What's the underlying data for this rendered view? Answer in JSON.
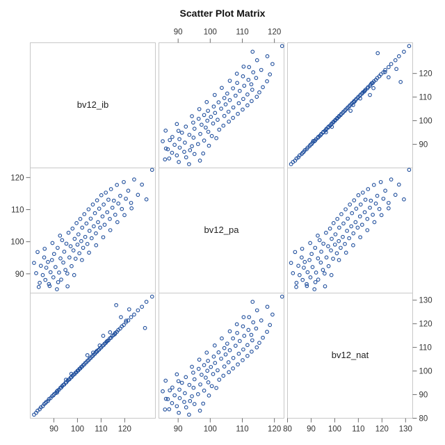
{
  "chart_data": {
    "type": "scatter",
    "title": "Scatter Plot Matrix",
    "variables": [
      "bv12_ib",
      "bv12_pa",
      "bv12_nat"
    ],
    "ranges": {
      "bv12_ib": [
        80,
        133
      ],
      "bv12_pa": [
        84,
        123
      ],
      "bv12_nat": [
        80,
        133
      ]
    },
    "ticks": {
      "bv12_ib": [
        90,
        100,
        110,
        120
      ],
      "bv12_pa": [
        90,
        100,
        110,
        120
      ],
      "bv12_nat": [
        80,
        90,
        100,
        110,
        120,
        130
      ]
    },
    "marker_color": "#1f4e9c",
    "grid": false,
    "series": [
      {
        "x_var": "bv12_ib",
        "y_var": "bv12_pa",
        "points": [
          [
            81.6,
            93.4
          ],
          [
            82.5,
            90.2
          ],
          [
            83.1,
            96.8
          ],
          [
            84.0,
            87.2
          ],
          [
            84.5,
            92.5
          ],
          [
            85.3,
            89.6
          ],
          [
            85.9,
            95.1
          ],
          [
            86.4,
            88.1
          ],
          [
            86.8,
            91.9
          ],
          [
            87.5,
            93.7
          ],
          [
            87.9,
            86.8
          ],
          [
            88.6,
            90.5
          ],
          [
            89.2,
            94.3
          ],
          [
            89.8,
            88.9
          ],
          [
            90.1,
            96.2
          ],
          [
            90.7,
            92.1
          ],
          [
            91.3,
            85.2
          ],
          [
            91.6,
            98.1
          ],
          [
            92.2,
            90.4
          ],
          [
            92.8,
            94.8
          ],
          [
            93.1,
            88.2
          ],
          [
            93.5,
            100.5
          ],
          [
            94.0,
            93.5
          ],
          [
            94.4,
            96.9
          ],
          [
            94.9,
            91.2
          ],
          [
            95.3,
            99.4
          ],
          [
            95.8,
            86.1
          ],
          [
            96.2,
            102.8
          ],
          [
            96.6,
            95.1
          ],
          [
            97.1,
            98.6
          ],
          [
            97.5,
            92.4
          ],
          [
            97.9,
            104.1
          ],
          [
            98.3,
            97.3
          ],
          [
            98.8,
            100.9
          ],
          [
            99.2,
            94.7
          ],
          [
            99.6,
            105.8
          ],
          [
            100.0,
            99.1
          ],
          [
            100.4,
            102.3
          ],
          [
            100.8,
            96.4
          ],
          [
            101.2,
            107.1
          ],
          [
            101.6,
            100.2
          ],
          [
            102.0,
            104.4
          ],
          [
            102.4,
            98.1
          ],
          [
            102.9,
            108.6
          ],
          [
            103.3,
            101.5
          ],
          [
            103.8,
            105.7
          ],
          [
            104.2,
            99.3
          ],
          [
            104.7,
            110.1
          ],
          [
            105.1,
            103.4
          ],
          [
            105.6,
            107.2
          ],
          [
            106.0,
            101.1
          ],
          [
            106.5,
            111.6
          ],
          [
            106.9,
            104.8
          ],
          [
            107.4,
            108.9
          ],
          [
            107.8,
            102.6
          ],
          [
            108.3,
            112.9
          ],
          [
            108.7,
            106.1
          ],
          [
            109.2,
            110.3
          ],
          [
            109.6,
            104.4
          ],
          [
            110.1,
            114.5
          ],
          [
            110.6,
            107.9
          ],
          [
            111.1,
            111.6
          ],
          [
            111.5,
            105.3
          ],
          [
            112.0,
            115.3
          ],
          [
            112.6,
            109.2
          ],
          [
            113.1,
            113.1
          ],
          [
            113.7,
            107.1
          ],
          [
            114.2,
            116.4
          ],
          [
            114.8,
            110.6
          ],
          [
            115.4,
            112.8
          ],
          [
            116.0,
            108.4
          ],
          [
            116.7,
            117.7
          ],
          [
            117.3,
            111.9
          ],
          [
            118.1,
            114.3
          ],
          [
            118.8,
            110.2
          ],
          [
            119.6,
            118.6
          ],
          [
            120.5,
            113.4
          ],
          [
            121.5,
            115.9
          ],
          [
            122.7,
            112.1
          ],
          [
            124.0,
            119.4
          ],
          [
            125.6,
            114.6
          ],
          [
            127.3,
            117.8
          ],
          [
            129.2,
            113.2
          ],
          [
            131.6,
            122.4
          ],
          [
            86.1,
            97.8
          ],
          [
            89.4,
            99.6
          ],
          [
            92.6,
            101.9
          ],
          [
            95.7,
            90.1
          ],
          [
            98.6,
            89.6
          ],
          [
            101.9,
            94.3
          ],
          [
            104.9,
            96.6
          ],
          [
            107.9,
            98.9
          ],
          [
            110.9,
            101.4
          ],
          [
            113.9,
            103.6
          ],
          [
            116.9,
            106.1
          ],
          [
            119.9,
            108.3
          ],
          [
            122.9,
            110.4
          ],
          [
            83.6,
            85.9
          ],
          [
            88.2,
            86.2
          ],
          [
            91.8,
            87.4
          ]
        ]
      },
      {
        "x_var": "bv12_ib",
        "y_var": "bv12_nat",
        "points": [
          [
            81.6,
            81.5
          ],
          [
            82.5,
            82.3
          ],
          [
            83.1,
            83.2
          ],
          [
            84.0,
            83.8
          ],
          [
            84.5,
            84.6
          ],
          [
            85.3,
            85.1
          ],
          [
            85.9,
            86.0
          ],
          [
            86.4,
            86.4
          ],
          [
            86.8,
            86.9
          ],
          [
            87.5,
            87.3
          ],
          [
            87.9,
            88.1
          ],
          [
            88.6,
            88.5
          ],
          [
            89.2,
            89.3
          ],
          [
            89.8,
            89.7
          ],
          [
            90.1,
            90.2
          ],
          [
            90.7,
            90.6
          ],
          [
            91.3,
            91.4
          ],
          [
            91.6,
            91.7
          ],
          [
            92.2,
            92.1
          ],
          [
            92.8,
            92.9
          ],
          [
            93.1,
            93.0
          ],
          [
            93.5,
            93.6
          ],
          [
            94.0,
            94.1
          ],
          [
            94.4,
            94.3
          ],
          [
            94.9,
            95.0
          ],
          [
            95.3,
            95.2
          ],
          [
            95.8,
            95.9
          ],
          [
            96.2,
            96.3
          ],
          [
            96.6,
            96.5
          ],
          [
            97.1,
            97.2
          ],
          [
            97.5,
            97.4
          ],
          [
            97.9,
            98.0
          ],
          [
            98.3,
            98.4
          ],
          [
            98.8,
            98.7
          ],
          [
            99.2,
            99.3
          ],
          [
            99.6,
            99.5
          ],
          [
            100.0,
            100.1
          ],
          [
            100.4,
            100.3
          ],
          [
            100.8,
            100.9
          ],
          [
            101.2,
            101.1
          ],
          [
            101.6,
            101.7
          ],
          [
            102.0,
            101.9
          ],
          [
            102.4,
            102.5
          ],
          [
            102.9,
            102.8
          ],
          [
            103.3,
            103.4
          ],
          [
            103.8,
            103.7
          ],
          [
            104.2,
            104.3
          ],
          [
            104.7,
            104.6
          ],
          [
            105.1,
            105.2
          ],
          [
            105.6,
            105.5
          ],
          [
            106.0,
            106.1
          ],
          [
            106.5,
            106.4
          ],
          [
            106.9,
            107.0
          ],
          [
            107.4,
            107.3
          ],
          [
            107.8,
            107.9
          ],
          [
            108.3,
            108.2
          ],
          [
            108.7,
            108.8
          ],
          [
            109.2,
            109.1
          ],
          [
            109.6,
            109.7
          ],
          [
            110.1,
            110.0
          ],
          [
            110.6,
            110.7
          ],
          [
            111.1,
            111.0
          ],
          [
            111.5,
            111.6
          ],
          [
            112.0,
            111.9
          ],
          [
            112.6,
            112.7
          ],
          [
            113.1,
            113.0
          ],
          [
            113.7,
            113.8
          ],
          [
            114.2,
            114.1
          ],
          [
            114.8,
            114.9
          ],
          [
            115.4,
            115.3
          ],
          [
            116.0,
            116.1
          ],
          [
            116.7,
            116.6
          ],
          [
            117.3,
            117.4
          ],
          [
            118.1,
            118.0
          ],
          [
            118.8,
            118.9
          ],
          [
            119.6,
            119.5
          ],
          [
            120.5,
            120.6
          ],
          [
            121.5,
            121.4
          ],
          [
            122.7,
            122.8
          ],
          [
            124.0,
            123.9
          ],
          [
            125.6,
            125.7
          ],
          [
            127.3,
            127.2
          ],
          [
            129.2,
            129.3
          ],
          [
            131.6,
            131.5
          ],
          [
            106.6,
            107.8
          ],
          [
            109.4,
            110.8
          ],
          [
            104.2,
            106.7
          ],
          [
            118.4,
            122.8
          ],
          [
            121.9,
            126.1
          ],
          [
            128.6,
            118.2
          ],
          [
            110.9,
            114.9
          ],
          [
            97.4,
            98.8
          ],
          [
            95.1,
            96.3
          ],
          [
            113.8,
            116.4
          ],
          [
            91.4,
            90.9
          ],
          [
            112.3,
            112.4
          ],
          [
            115.9,
            115.7
          ],
          [
            108.1,
            108.4
          ],
          [
            116.4,
            127.9
          ],
          [
            120.6,
            121.3
          ]
        ]
      },
      {
        "x_var": "bv12_pa",
        "y_var": "bv12_nat",
        "points": [
          [
            93.4,
            81.5
          ],
          [
            90.2,
            82.3
          ],
          [
            96.8,
            83.2
          ],
          [
            87.2,
            83.8
          ],
          [
            92.5,
            84.6
          ],
          [
            89.6,
            85.1
          ],
          [
            95.1,
            86.0
          ],
          [
            88.1,
            86.4
          ],
          [
            91.9,
            86.9
          ],
          [
            93.7,
            87.3
          ],
          [
            86.8,
            88.1
          ],
          [
            90.5,
            88.5
          ],
          [
            94.3,
            89.3
          ],
          [
            88.9,
            89.7
          ],
          [
            96.2,
            90.2
          ],
          [
            92.1,
            90.6
          ],
          [
            85.2,
            91.4
          ],
          [
            98.1,
            91.7
          ],
          [
            90.4,
            92.1
          ],
          [
            94.8,
            92.9
          ],
          [
            88.2,
            93.0
          ],
          [
            100.5,
            93.6
          ],
          [
            93.5,
            94.1
          ],
          [
            96.9,
            94.3
          ],
          [
            91.2,
            95.0
          ],
          [
            99.4,
            95.2
          ],
          [
            86.1,
            95.9
          ],
          [
            102.8,
            96.3
          ],
          [
            95.1,
            96.5
          ],
          [
            98.6,
            97.2
          ],
          [
            92.4,
            97.4
          ],
          [
            104.1,
            98.0
          ],
          [
            97.3,
            98.4
          ],
          [
            100.9,
            98.7
          ],
          [
            94.7,
            99.3
          ],
          [
            105.8,
            99.5
          ],
          [
            99.1,
            100.1
          ],
          [
            102.3,
            100.3
          ],
          [
            96.4,
            100.9
          ],
          [
            107.1,
            101.1
          ],
          [
            100.2,
            101.7
          ],
          [
            104.4,
            101.9
          ],
          [
            98.1,
            102.5
          ],
          [
            108.6,
            102.8
          ],
          [
            101.5,
            103.4
          ],
          [
            105.7,
            103.7
          ],
          [
            99.3,
            104.3
          ],
          [
            110.1,
            104.6
          ],
          [
            103.4,
            105.2
          ],
          [
            107.2,
            105.5
          ],
          [
            101.1,
            106.1
          ],
          [
            111.6,
            106.4
          ],
          [
            104.8,
            107.0
          ],
          [
            108.9,
            107.3
          ],
          [
            102.6,
            107.9
          ],
          [
            112.9,
            108.2
          ],
          [
            106.1,
            108.8
          ],
          [
            110.3,
            109.1
          ],
          [
            104.4,
            109.7
          ],
          [
            114.5,
            110.0
          ],
          [
            107.9,
            110.7
          ],
          [
            111.6,
            111.0
          ],
          [
            105.3,
            111.6
          ],
          [
            115.3,
            111.9
          ],
          [
            109.2,
            112.7
          ],
          [
            113.1,
            113.0
          ],
          [
            107.1,
            113.8
          ],
          [
            116.4,
            114.1
          ],
          [
            110.6,
            114.9
          ],
          [
            112.8,
            115.3
          ],
          [
            108.4,
            116.1
          ],
          [
            117.7,
            116.6
          ],
          [
            111.9,
            117.4
          ],
          [
            114.3,
            118.0
          ],
          [
            110.2,
            118.9
          ],
          [
            118.6,
            119.5
          ],
          [
            113.4,
            120.6
          ],
          [
            115.9,
            121.4
          ],
          [
            112.1,
            122.8
          ],
          [
            119.4,
            123.9
          ],
          [
            114.6,
            125.7
          ],
          [
            117.8,
            127.2
          ],
          [
            113.2,
            129.3
          ],
          [
            122.4,
            131.5
          ],
          [
            97.8,
            86.2
          ],
          [
            99.6,
            89.6
          ],
          [
            101.9,
            92.8
          ],
          [
            90.1,
            95.7
          ],
          [
            89.6,
            98.6
          ],
          [
            94.3,
            101.8
          ],
          [
            96.6,
            104.8
          ],
          [
            98.9,
            107.8
          ],
          [
            101.4,
            110.8
          ],
          [
            103.6,
            113.8
          ],
          [
            106.1,
            116.8
          ],
          [
            108.3,
            119.8
          ],
          [
            110.4,
            122.8
          ],
          [
            85.9,
            83.7
          ],
          [
            86.2,
            88.2
          ],
          [
            87.4,
            91.8
          ]
        ]
      }
    ]
  }
}
